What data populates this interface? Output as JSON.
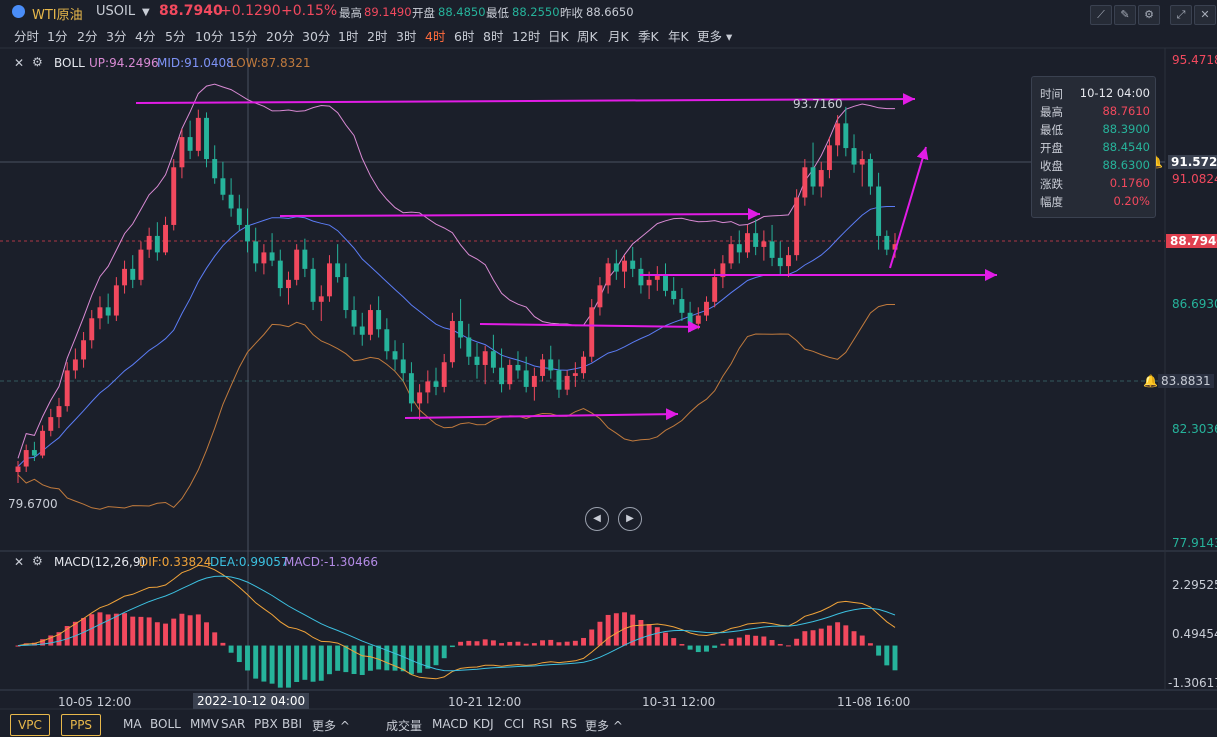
{
  "header": {
    "name": "WTI原油",
    "symbol": "USOIL",
    "price": "88.7940",
    "change": "+0.1290",
    "change_pct": "+0.15%",
    "high_label": "最高",
    "high": "89.1490",
    "open_label": "开盘",
    "open": "88.4850",
    "low_label": "最低",
    "low": "88.2550",
    "prev_label": "昨收",
    "prev": "88.6650"
  },
  "periods": [
    "分时",
    "1分",
    "2分",
    "3分",
    "4分",
    "5分",
    "10分",
    "15分",
    "20分",
    "30分",
    "1时",
    "2时",
    "3时",
    "4时",
    "6时",
    "8时",
    "12时",
    "日K",
    "周K",
    "月K",
    "季K",
    "年K",
    "更多"
  ],
  "active_period": "4时",
  "boll": {
    "name": "BOLL",
    "up": "UP:94.2496",
    "mid": "MID:91.0408",
    "low": "LOW:87.8321"
  },
  "macd": {
    "name": "MACD(12,26,9)",
    "dif": "DIF:0.33824",
    "dea": "DEA:0.99057",
    "macd": "MACD:-1.30466"
  },
  "price_axis": [
    "95.4718",
    "91.0824",
    "86.6930",
    "82.3036",
    "77.9143"
  ],
  "price_markers": {
    "hover": "91.5722",
    "current": "88.7940",
    "alert": "83.8831"
  },
  "macd_axis": [
    "2.29525",
    "0.49454",
    "-1.30617"
  ],
  "x_labels": [
    "10-05 12:00",
    "2022-10-12 04:00",
    "10-21 12:00",
    "10-31 12:00",
    "11-08 16:00"
  ],
  "annotations": {
    "max": "93.7160",
    "min": "79.6700"
  },
  "tooltip": [
    {
      "k": "时间",
      "v": "10-12 04:00",
      "color": "#e6e8ee"
    },
    {
      "k": "最高",
      "v": "88.7610",
      "color": "#f2495e"
    },
    {
      "k": "最低",
      "v": "88.3900",
      "color": "#26b39b"
    },
    {
      "k": "开盘",
      "v": "88.4540",
      "color": "#26b39b"
    },
    {
      "k": "收盘",
      "v": "88.6300",
      "color": "#26b39b"
    },
    {
      "k": "涨跌",
      "v": "0.1760",
      "color": "#f2495e"
    },
    {
      "k": "幅度",
      "v": "0.20%",
      "color": "#f2495e"
    }
  ],
  "bottom_buttons": [
    "VPC",
    "PPS"
  ],
  "bottom_main_indicators": [
    "MA",
    "BOLL",
    "MMV",
    "SAR",
    "PBX",
    "BBI",
    "更多"
  ],
  "bottom_sub_indicators": [
    "成交量",
    "MACD",
    "KDJ",
    "CCI",
    "RSI",
    "RS",
    "更多"
  ],
  "colors": {
    "up": "#f2495e",
    "down": "#26b39b",
    "boll_up": "#d98ad4",
    "boll_mid": "#5b7cf5",
    "boll_low": "#c07a3d",
    "arrow": "#e21ce6",
    "dif": "#f0a33a",
    "dea": "#3cc0e0"
  },
  "chart_data": {
    "type": "candlestick",
    "title": "WTI原油 USOIL 4时",
    "ylim": [
      77.9143,
      95.4718
    ],
    "ohlc": [
      [
        80.5,
        80.9,
        80.1,
        80.7
      ],
      [
        80.7,
        81.5,
        80.5,
        81.3
      ],
      [
        81.3,
        81.6,
        80.9,
        81.1
      ],
      [
        81.1,
        82.2,
        81.0,
        82.0
      ],
      [
        82.0,
        82.8,
        81.8,
        82.5
      ],
      [
        82.5,
        83.2,
        82.1,
        82.9
      ],
      [
        82.9,
        84.5,
        82.7,
        84.2
      ],
      [
        84.2,
        85.0,
        83.9,
        84.6
      ],
      [
        84.6,
        85.6,
        84.3,
        85.3
      ],
      [
        85.3,
        86.4,
        85.0,
        86.1
      ],
      [
        86.1,
        86.9,
        85.7,
        86.5
      ],
      [
        86.5,
        87.0,
        85.9,
        86.2
      ],
      [
        86.2,
        87.6,
        86.0,
        87.3
      ],
      [
        87.3,
        88.2,
        87.0,
        87.9
      ],
      [
        87.9,
        88.4,
        87.2,
        87.5
      ],
      [
        87.5,
        88.9,
        87.3,
        88.6
      ],
      [
        88.6,
        89.4,
        88.3,
        89.1
      ],
      [
        89.1,
        89.6,
        88.2,
        88.5
      ],
      [
        88.5,
        89.8,
        88.4,
        89.5
      ],
      [
        89.5,
        91.9,
        89.3,
        91.6
      ],
      [
        91.6,
        93.0,
        91.2,
        92.7
      ],
      [
        92.7,
        93.3,
        91.9,
        92.2
      ],
      [
        92.2,
        93.7,
        92.0,
        93.4
      ],
      [
        93.4,
        93.6,
        91.6,
        91.9
      ],
      [
        91.9,
        92.4,
        91.0,
        91.2
      ],
      [
        91.2,
        91.8,
        90.4,
        90.6
      ],
      [
        90.6,
        91.2,
        89.8,
        90.1
      ],
      [
        90.1,
        90.6,
        89.3,
        89.5
      ],
      [
        89.5,
        90.1,
        88.5,
        88.9
      ],
      [
        88.9,
        89.4,
        87.8,
        88.1
      ],
      [
        88.1,
        88.8,
        87.7,
        88.5
      ],
      [
        88.5,
        89.2,
        88.0,
        88.2
      ],
      [
        88.2,
        88.6,
        86.9,
        87.2
      ],
      [
        87.2,
        87.8,
        86.6,
        87.5
      ],
      [
        87.5,
        88.8,
        87.3,
        88.6
      ],
      [
        88.6,
        89.0,
        87.6,
        87.9
      ],
      [
        87.9,
        88.3,
        86.4,
        86.7
      ],
      [
        86.7,
        87.3,
        86.0,
        86.9
      ],
      [
        86.9,
        88.4,
        86.7,
        88.1
      ],
      [
        88.1,
        88.8,
        87.4,
        87.6
      ],
      [
        87.6,
        88.1,
        86.1,
        86.4
      ],
      [
        86.4,
        86.9,
        85.5,
        85.8
      ],
      [
        85.8,
        86.3,
        85.1,
        85.5
      ],
      [
        85.5,
        86.6,
        85.3,
        86.4
      ],
      [
        86.4,
        86.9,
        85.4,
        85.7
      ],
      [
        85.7,
        86.1,
        84.6,
        84.9
      ],
      [
        84.9,
        85.3,
        84.2,
        84.6
      ],
      [
        84.6,
        85.2,
        83.8,
        84.1
      ],
      [
        84.1,
        84.5,
        82.7,
        83.0
      ],
      [
        83.0,
        83.7,
        82.4,
        83.4
      ],
      [
        83.4,
        84.2,
        83.0,
        83.8
      ],
      [
        83.8,
        84.3,
        83.3,
        83.6
      ],
      [
        83.6,
        84.8,
        83.4,
        84.5
      ],
      [
        84.5,
        86.3,
        84.3,
        86.0
      ],
      [
        86.0,
        86.8,
        85.0,
        85.4
      ],
      [
        85.4,
        85.9,
        84.4,
        84.7
      ],
      [
        84.7,
        85.2,
        83.9,
        84.4
      ],
      [
        84.4,
        85.1,
        83.7,
        84.9
      ],
      [
        84.9,
        85.5,
        84.1,
        84.3
      ],
      [
        84.3,
        85.0,
        83.4,
        83.7
      ],
      [
        83.7,
        84.6,
        83.5,
        84.4
      ],
      [
        84.4,
        84.9,
        83.9,
        84.2
      ],
      [
        84.2,
        84.7,
        83.4,
        83.6
      ],
      [
        83.6,
        84.3,
        83.1,
        84.0
      ],
      [
        84.0,
        84.8,
        83.8,
        84.6
      ],
      [
        84.6,
        85.1,
        83.9,
        84.2
      ],
      [
        84.2,
        84.6,
        83.2,
        83.5
      ],
      [
        83.5,
        84.2,
        83.3,
        84.0
      ],
      [
        84.0,
        84.5,
        83.6,
        84.1
      ],
      [
        84.1,
        84.9,
        83.9,
        84.7
      ],
      [
        84.7,
        86.8,
        84.5,
        86.5
      ],
      [
        86.5,
        87.6,
        86.2,
        87.3
      ],
      [
        87.3,
        88.3,
        87.0,
        88.1
      ],
      [
        88.1,
        88.6,
        87.5,
        87.8
      ],
      [
        87.8,
        88.4,
        87.2,
        88.2
      ],
      [
        88.2,
        88.7,
        87.6,
        87.9
      ],
      [
        87.9,
        88.3,
        87.0,
        87.3
      ],
      [
        87.3,
        87.8,
        86.8,
        87.5
      ],
      [
        87.5,
        88.0,
        87.1,
        87.7
      ],
      [
        87.7,
        88.1,
        86.9,
        87.1
      ],
      [
        87.1,
        87.6,
        86.6,
        86.8
      ],
      [
        86.8,
        87.2,
        86.0,
        86.3
      ],
      [
        86.3,
        86.7,
        85.6,
        85.9
      ],
      [
        85.9,
        86.5,
        85.7,
        86.2
      ],
      [
        86.2,
        86.9,
        86.0,
        86.7
      ],
      [
        86.7,
        87.9,
        86.5,
        87.6
      ],
      [
        87.6,
        88.4,
        87.2,
        88.1
      ],
      [
        88.1,
        89.1,
        87.9,
        88.8
      ],
      [
        88.8,
        89.3,
        88.1,
        88.5
      ],
      [
        88.5,
        89.5,
        88.3,
        89.2
      ],
      [
        89.2,
        89.7,
        88.4,
        88.7
      ],
      [
        88.7,
        89.3,
        88.2,
        88.9
      ],
      [
        88.9,
        89.5,
        88.0,
        88.3
      ],
      [
        88.3,
        88.9,
        87.7,
        88.0
      ],
      [
        88.0,
        88.7,
        87.6,
        88.4
      ],
      [
        88.4,
        90.8,
        88.2,
        90.5
      ],
      [
        90.5,
        91.9,
        90.2,
        91.6
      ],
      [
        91.6,
        92.5,
        90.6,
        90.9
      ],
      [
        90.9,
        91.8,
        90.5,
        91.5
      ],
      [
        91.5,
        92.7,
        91.2,
        92.4
      ],
      [
        92.4,
        93.5,
        92.0,
        93.2
      ],
      [
        93.2,
        93.8,
        92.0,
        92.3
      ],
      [
        92.3,
        92.8,
        91.4,
        91.7
      ],
      [
        91.7,
        92.2,
        90.9,
        91.9
      ],
      [
        91.9,
        92.1,
        90.6,
        90.9
      ],
      [
        90.9,
        91.4,
        88.6,
        89.1
      ],
      [
        89.1,
        89.3,
        88.4,
        88.6
      ],
      [
        88.6,
        89.2,
        88.3,
        88.8
      ]
    ],
    "boll": {
      "up": "94.2496",
      "mid": "91.0408",
      "low": "87.8321"
    },
    "macd": {
      "dif": 0.33824,
      "dea": 0.99057,
      "hist": -1.30466,
      "ylim": [
        -1.30617,
        2.29525
      ]
    }
  }
}
